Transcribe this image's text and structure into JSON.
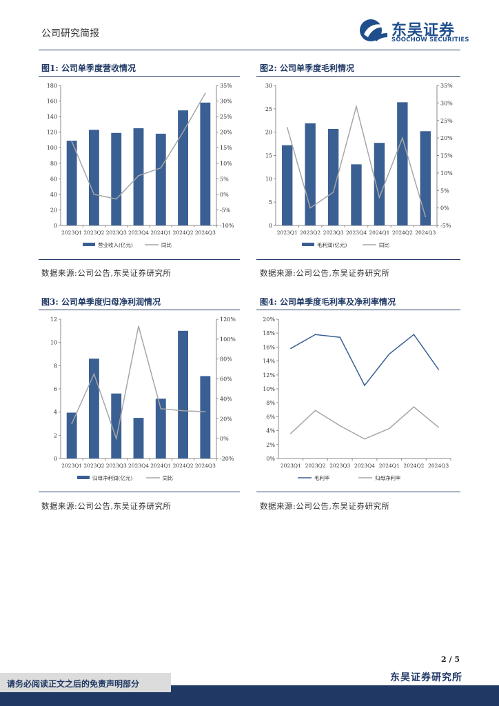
{
  "header": {
    "doc_type": "公司研究简报",
    "brand_cn": "东吴证券",
    "brand_en": "SOOCHOW SECURITIES"
  },
  "figures": [
    {
      "title": "图1: 公司单季度营收情况",
      "source": "数据来源:公司公告,东吴证券研究所"
    },
    {
      "title": "图2: 公司单季度毛利情况",
      "source": "数据来源:公司公告,东吴证券研究所"
    },
    {
      "title": "图3: 公司单季度归母净利润情况",
      "source": "数据来源:公司公告,东吴证券研究所"
    },
    {
      "title": "图4: 公司单季度毛利率及净利率情况",
      "source": "数据来源:公司公告,东吴证券研究所"
    }
  ],
  "chart_data": [
    {
      "type": "bar",
      "categories": [
        "2023Q1",
        "2023Q2",
        "2023Q3",
        "2023Q4",
        "2024Q1",
        "2024Q2",
        "2024Q3"
      ],
      "series": [
        {
          "name": "营业收入(亿元)",
          "type": "bar",
          "axis": "left",
          "values": [
            109,
            123,
            119,
            125,
            118,
            148,
            158
          ]
        },
        {
          "name": "同比",
          "type": "line",
          "axis": "right",
          "values": [
            17,
            0,
            -1.5,
            6,
            8.5,
            20,
            32.5
          ]
        }
      ],
      "ylim": [
        0,
        180
      ],
      "yticks": [
        "0",
        "20",
        "40",
        "60",
        "80",
        "100",
        "120",
        "140",
        "160",
        "180"
      ],
      "y2lim": [
        -10,
        35
      ],
      "y2ticks": [
        "-10%",
        "-5%",
        "0%",
        "5%",
        "10%",
        "15%",
        "20%",
        "25%",
        "30%",
        "35%"
      ],
      "colors": {
        "bar": "#3a5f93",
        "line": "#a6a6a6"
      }
    },
    {
      "type": "bar",
      "categories": [
        "2023Q1",
        "2023Q2",
        "2023Q3",
        "2023Q4",
        "2024Q1",
        "2024Q2",
        "2024Q3"
      ],
      "series": [
        {
          "name": "毛利润(亿元)",
          "type": "bar",
          "axis": "left",
          "values": [
            17.2,
            21.9,
            20.7,
            13.1,
            17.7,
            26.4,
            20.2
          ]
        },
        {
          "name": "同比",
          "type": "line",
          "axis": "right",
          "values": [
            23,
            0,
            4.5,
            29,
            3,
            20,
            -2.5
          ]
        }
      ],
      "ylim": [
        0,
        30
      ],
      "yticks": [
        "0",
        "5",
        "10",
        "15",
        "20",
        "25",
        "30"
      ],
      "y2lim": [
        -5,
        35
      ],
      "y2ticks": [
        "-5%",
        "0%",
        "5%",
        "10%",
        "15%",
        "20%",
        "25%",
        "30%",
        "35%"
      ],
      "colors": {
        "bar": "#3a5f93",
        "line": "#a6a6a6"
      }
    },
    {
      "type": "bar",
      "categories": [
        "2023Q1",
        "2023Q2",
        "2023Q3",
        "2023Q4",
        "2024Q1",
        "2024Q2",
        "2024Q3"
      ],
      "series": [
        {
          "name": "归母净利润(亿元)",
          "type": "bar",
          "axis": "left",
          "values": [
            3.95,
            8.6,
            5.6,
            3.5,
            5.15,
            11.0,
            7.1
          ]
        },
        {
          "name": "同比",
          "type": "line",
          "axis": "right",
          "values": [
            15,
            65,
            0,
            113,
            30,
            28,
            27
          ]
        }
      ],
      "ylim": [
        0,
        12
      ],
      "yticks": [
        "0",
        "2",
        "4",
        "6",
        "8",
        "10",
        "12"
      ],
      "y2lim": [
        -20,
        120
      ],
      "y2ticks": [
        "-20%",
        "0%",
        "20%",
        "40%",
        "60%",
        "80%",
        "100%",
        "120%"
      ],
      "colors": {
        "bar": "#3a5f93",
        "line": "#a6a6a6"
      }
    },
    {
      "type": "line",
      "categories": [
        "2023Q1",
        "2023Q2",
        "2023Q3",
        "2023Q4",
        "2024Q1",
        "2024Q2",
        "2024Q3"
      ],
      "series": [
        {
          "name": "毛利率",
          "values": [
            15.8,
            17.8,
            17.4,
            10.5,
            15.0,
            17.8,
            12.8
          ]
        },
        {
          "name": "归母净利率",
          "values": [
            3.6,
            6.9,
            4.7,
            2.8,
            4.3,
            7.4,
            4.5
          ]
        }
      ],
      "ylim": [
        0,
        20
      ],
      "yticks": [
        "0%",
        "2%",
        "4%",
        "6%",
        "8%",
        "10%",
        "12%",
        "14%",
        "16%",
        "18%",
        "20%"
      ],
      "colors": {
        "line1": "#3a5f93",
        "line2": "#a6a6a6"
      }
    }
  ],
  "footer": {
    "page": "2 / 5",
    "org": "东吴证券研究所",
    "disclaimer": "请务必阅读正文之后的免责声明部分"
  }
}
